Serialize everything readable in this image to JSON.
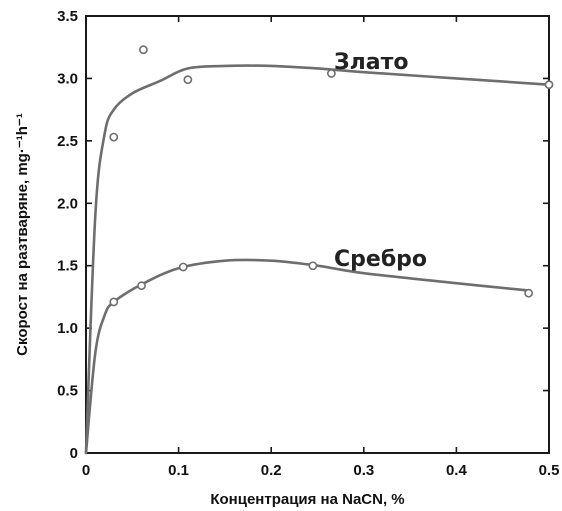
{
  "chart_data": {
    "type": "line",
    "xlabel": "Концентрация на NaCN, %",
    "ylabel": "Скорост на разтваряне, mg·⁻¹h⁻¹",
    "xlim": [
      0,
      0.5
    ],
    "ylim": [
      0,
      3.5
    ],
    "x_ticks": [
      0,
      0.1,
      0.2,
      0.3,
      0.4,
      0.5
    ],
    "x_tick_labels": [
      "0",
      "0.1",
      "0.2",
      "0.3",
      "0.4",
      "0.5"
    ],
    "y_ticks": [
      0,
      0.5,
      1.0,
      1.5,
      2.0,
      2.5,
      3.0,
      3.5
    ],
    "y_tick_labels": [
      "0",
      "0.5",
      "1.0",
      "1.5",
      "2.0",
      "2.5",
      "3.0",
      "3.5"
    ],
    "grid": false,
    "series": [
      {
        "name": "Злато",
        "color": "#6e6e6e",
        "curve": [
          [
            0,
            0
          ],
          [
            0.01,
            1.9
          ],
          [
            0.02,
            2.55
          ],
          [
            0.03,
            2.75
          ],
          [
            0.05,
            2.88
          ],
          [
            0.08,
            2.98
          ],
          [
            0.11,
            3.08
          ],
          [
            0.15,
            3.1
          ],
          [
            0.2,
            3.1
          ],
          [
            0.25,
            3.08
          ],
          [
            0.3,
            3.05
          ],
          [
            0.4,
            3.0
          ],
          [
            0.5,
            2.95
          ]
        ],
        "points": [
          [
            0.03,
            2.53
          ],
          [
            0.062,
            3.23
          ],
          [
            0.11,
            2.99
          ],
          [
            0.265,
            3.04
          ],
          [
            0.5,
            2.95
          ]
        ]
      },
      {
        "name": "Сребро",
        "color": "#6e6e6e",
        "curve": [
          [
            0,
            0
          ],
          [
            0.01,
            0.8
          ],
          [
            0.02,
            1.1
          ],
          [
            0.03,
            1.21
          ],
          [
            0.06,
            1.35
          ],
          [
            0.1,
            1.48
          ],
          [
            0.15,
            1.54
          ],
          [
            0.2,
            1.54
          ],
          [
            0.25,
            1.5
          ],
          [
            0.3,
            1.44
          ],
          [
            0.4,
            1.36
          ],
          [
            0.48,
            1.3
          ]
        ],
        "points": [
          [
            0.03,
            1.21
          ],
          [
            0.06,
            1.34
          ],
          [
            0.105,
            1.49
          ],
          [
            0.245,
            1.5
          ],
          [
            0.478,
            1.28
          ]
        ]
      }
    ]
  }
}
